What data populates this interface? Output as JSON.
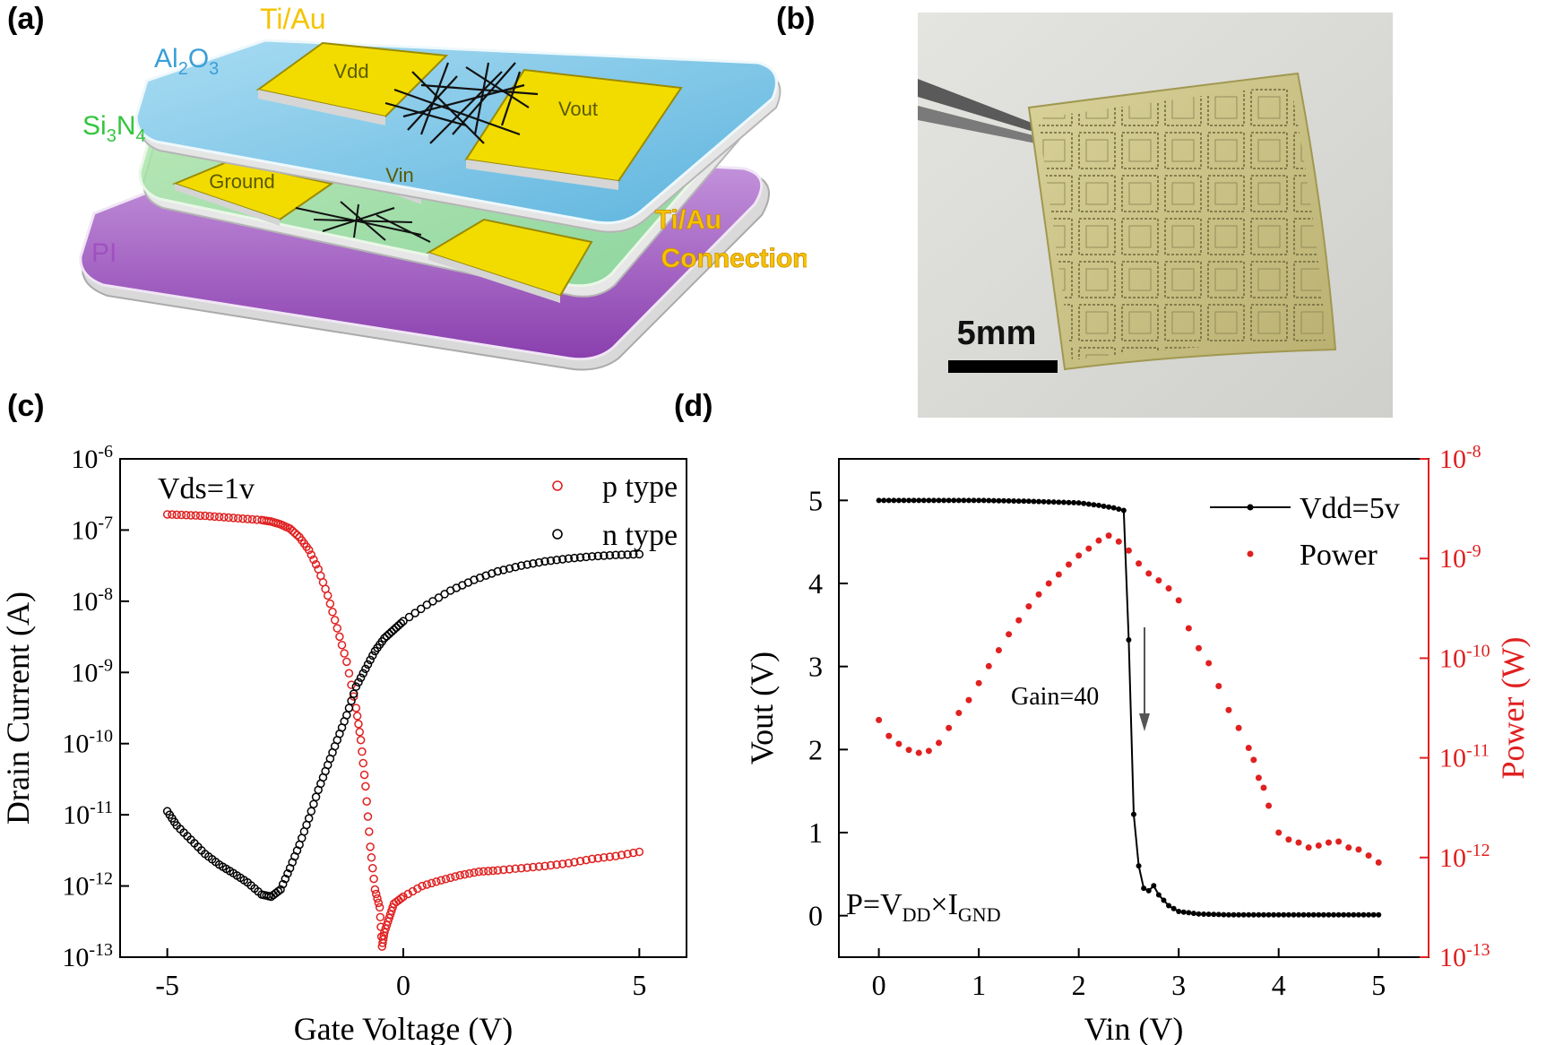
{
  "panels": {
    "a": "(a)",
    "b": "(b)",
    "c": "(c)",
    "d": "(d)"
  },
  "device": {
    "layers": {
      "ti_au_top": "Ti/Au",
      "al2o3": {
        "base": "Al",
        "sub1": "2",
        "mid": "O",
        "sub2": "3"
      },
      "si3n4": {
        "base": "Si",
        "sub1": "3",
        "mid": "N",
        "sub2": "4"
      },
      "pi": "PI",
      "ti_au_conn_1": "Ti/Au",
      "ti_au_conn_2": "Connection"
    },
    "pads": {
      "vdd": "Vdd",
      "vout": "Vout",
      "ground": "Ground",
      "vin": "Vin"
    },
    "colors": {
      "al2o3": "#7ec3e4",
      "si3n4": "#8fdc8a",
      "pi": "#b06ec8",
      "gold": "#f2dc00",
      "ti_au_label": "#f5c400"
    }
  },
  "photo": {
    "scale_bar": "5mm"
  },
  "chart_data": [
    {
      "id": "c",
      "type": "scatter",
      "xlabel": "Gate Voltage (V)",
      "ylabel": "Drain Current (A)",
      "yscale": "log",
      "xlim": [
        -6,
        6
      ],
      "ylim_exp": [
        -13,
        -6
      ],
      "xticks": [
        -5,
        0,
        5
      ],
      "xtick_labels": [
        "-5",
        "0",
        "5"
      ],
      "ytick_exps": [
        -6,
        -7,
        -8,
        -9,
        -10,
        -11,
        -12,
        -13
      ],
      "ytick_base": "10",
      "ytick_labels": [
        "-6",
        "-7",
        "-8",
        "-9",
        "-10",
        "-11",
        "-12",
        "-13"
      ],
      "annotation": "Vds=1v",
      "legend": [
        "p type",
        "n type"
      ],
      "series": [
        {
          "name": "p type",
          "color": "#e02020",
          "x": [
            -5.0,
            -4.6,
            -4.2,
            -3.8,
            -3.4,
            -3.0,
            -2.8,
            -2.6,
            -2.4,
            -2.2,
            -2.0,
            -1.8,
            -1.6,
            -1.4,
            -1.2,
            -1.0,
            -0.9,
            -0.8,
            -0.7,
            -0.6,
            -0.5,
            -0.45,
            -0.4,
            -0.3,
            -0.2,
            0.0,
            0.4,
            0.8,
            1.2,
            1.6,
            2.0,
            2.5,
            3.0,
            3.5,
            4.0,
            4.5,
            5.0
          ],
          "y_exp": [
            -6.78,
            -6.79,
            -6.8,
            -6.82,
            -6.84,
            -6.86,
            -6.88,
            -6.92,
            -6.98,
            -7.1,
            -7.28,
            -7.55,
            -7.92,
            -8.38,
            -8.85,
            -9.5,
            -9.95,
            -10.6,
            -11.45,
            -12.05,
            -12.3,
            -12.85,
            -12.65,
            -12.45,
            -12.25,
            -12.15,
            -12.0,
            -11.92,
            -11.85,
            -11.8,
            -11.78,
            -11.75,
            -11.72,
            -11.68,
            -11.62,
            -11.58,
            -11.52
          ]
        },
        {
          "name": "n type",
          "color": "#000000",
          "x": [
            -5.0,
            -4.8,
            -4.5,
            -4.2,
            -3.9,
            -3.6,
            -3.3,
            -3.0,
            -2.8,
            -2.6,
            -2.4,
            -2.2,
            -2.0,
            -1.8,
            -1.6,
            -1.4,
            -1.2,
            -1.0,
            -0.8,
            -0.6,
            -0.4,
            -0.2,
            0.0,
            0.5,
            1.0,
            1.5,
            2.0,
            2.5,
            3.0,
            3.5,
            4.0,
            4.5,
            5.0
          ],
          "y_exp": [
            -10.95,
            -11.15,
            -11.35,
            -11.55,
            -11.7,
            -11.82,
            -11.95,
            -12.12,
            -12.15,
            -12.05,
            -11.75,
            -11.42,
            -11.05,
            -10.65,
            -10.3,
            -9.95,
            -9.6,
            -9.2,
            -8.95,
            -8.7,
            -8.52,
            -8.4,
            -8.28,
            -8.05,
            -7.85,
            -7.7,
            -7.58,
            -7.5,
            -7.44,
            -7.4,
            -7.37,
            -7.35,
            -7.34
          ]
        }
      ]
    },
    {
      "id": "d",
      "type": "line",
      "xlabel": "Vin (V)",
      "ylabel": "Vout (V)",
      "y2label": "Power (W)",
      "xlim": [
        -0.4,
        5.5
      ],
      "ylim": [
        -0.5,
        5.5
      ],
      "y2lim_exp": [
        -13,
        -8
      ],
      "xticks": [
        0,
        1,
        2,
        3,
        4,
        5
      ],
      "xtick_labels": [
        "0",
        "1",
        "2",
        "3",
        "4",
        "5"
      ],
      "yticks": [
        0,
        1,
        2,
        3,
        4,
        5
      ],
      "ytick_labels": [
        "0",
        "1",
        "2",
        "3",
        "4",
        "5"
      ],
      "y2tick_exps": [
        -8,
        -9,
        -10,
        -11,
        -12,
        -13
      ],
      "y2tick_base": "10",
      "y2tick_labels": [
        "-8",
        "-9",
        "-10",
        "-11",
        "-12",
        "-13"
      ],
      "legend": [
        "Vdd=5v",
        "Power"
      ],
      "annotation_gain": "Gain=40",
      "formula": {
        "p": "P=V",
        "dd": "DD",
        "times": "×I",
        "gnd": "GND"
      },
      "series": [
        {
          "name": "Vdd=5v",
          "color": "#000000",
          "axis": "left",
          "x": [
            0.0,
            0.5,
            1.0,
            1.5,
            2.0,
            2.2,
            2.35,
            2.45,
            2.5,
            2.55,
            2.6,
            2.65,
            2.7,
            2.75,
            2.8,
            2.9,
            3.0,
            3.2,
            3.5,
            4.0,
            4.5,
            5.0
          ],
          "y": [
            5.0,
            5.0,
            5.0,
            4.99,
            4.97,
            4.94,
            4.91,
            4.88,
            3.32,
            1.22,
            0.6,
            0.33,
            0.3,
            0.36,
            0.25,
            0.12,
            0.05,
            0.02,
            0.01,
            0.01,
            0.01,
            0.01
          ]
        },
        {
          "name": "Power",
          "color": "#e02020",
          "axis": "right",
          "x": [
            0.0,
            0.1,
            0.2,
            0.3,
            0.4,
            0.5,
            0.6,
            0.7,
            0.8,
            0.9,
            1.0,
            1.1,
            1.2,
            1.3,
            1.4,
            1.5,
            1.6,
            1.7,
            1.8,
            1.9,
            2.0,
            2.1,
            2.2,
            2.3,
            2.4,
            2.5,
            2.6,
            2.7,
            2.8,
            2.9,
            3.0,
            3.1,
            3.2,
            3.3,
            3.4,
            3.5,
            3.6,
            3.7,
            3.75,
            3.8,
            3.85,
            3.9,
            4.0,
            4.1,
            4.2,
            4.3,
            4.4,
            4.5,
            4.6,
            4.7,
            4.8,
            4.9,
            5.0
          ],
          "y_exp": [
            -10.62,
            -10.78,
            -10.86,
            -10.92,
            -10.95,
            -10.93,
            -10.85,
            -10.7,
            -10.55,
            -10.42,
            -10.25,
            -10.08,
            -9.92,
            -9.76,
            -9.62,
            -9.48,
            -9.36,
            -9.25,
            -9.16,
            -9.06,
            -8.97,
            -8.9,
            -8.82,
            -8.77,
            -8.83,
            -8.92,
            -9.05,
            -9.15,
            -9.22,
            -9.3,
            -9.42,
            -9.7,
            -9.9,
            -10.05,
            -10.28,
            -10.52,
            -10.7,
            -10.9,
            -11.02,
            -11.2,
            -11.3,
            -11.48,
            -11.75,
            -11.82,
            -11.85,
            -11.9,
            -11.88,
            -11.85,
            -11.84,
            -11.9,
            -11.92,
            -11.98,
            -12.05
          ]
        }
      ]
    }
  ]
}
